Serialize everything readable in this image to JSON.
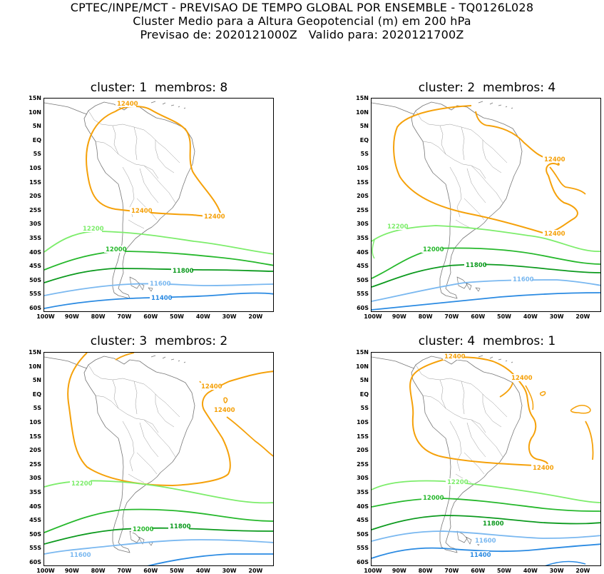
{
  "header": {
    "line1": "CPTEC/INPE/MCT - PREVISAO DE TEMPO GLOBAL POR ENSEMBLE - TQ0126L028",
    "line2": "Cluster Medio para a Altura Geopotencial (m) em 200 hPa",
    "line3": "Previsao de: 2020121000Z   Valido para: 2020121700Z"
  },
  "panels": [
    {
      "title": "cluster: 1  membros: 8",
      "labels": [
        "12400",
        "12400",
        "12400",
        "12200",
        "12000",
        "11800",
        "11600",
        "11400"
      ]
    },
    {
      "title": "cluster: 2  membros: 4",
      "labels": [
        "12400",
        "12400",
        "12200",
        "12000",
        "11800",
        "11600"
      ]
    },
    {
      "title": "cluster: 3  membros: 2",
      "labels": [
        "12400",
        "12400",
        "12200",
        "12000",
        "11800",
        "11600"
      ]
    },
    {
      "title": "cluster: 4  membros: 1",
      "labels": [
        "12400",
        "12400",
        "12400",
        "12200",
        "12000",
        "11800",
        "11600",
        "11400"
      ]
    }
  ],
  "axes": {
    "lat_labels": [
      "15N",
      "10N",
      "5N",
      "EQ",
      "5S",
      "10S",
      "15S",
      "20S",
      "25S",
      "30S",
      "35S",
      "40S",
      "45S",
      "50S",
      "55S",
      "60S"
    ],
    "lon_labels": [
      "100W",
      "90W",
      "80W",
      "70W",
      "60W",
      "50W",
      "40W",
      "30W",
      "20W"
    ]
  },
  "colors": {
    "c12400": "#f5a10a",
    "c12200": "#7ded6b",
    "c12000": "#26b82c",
    "c11800": "#0c9a1e",
    "c11600": "#7ab8f0",
    "c11400": "#2a8ae2",
    "coast": "#777777"
  }
}
